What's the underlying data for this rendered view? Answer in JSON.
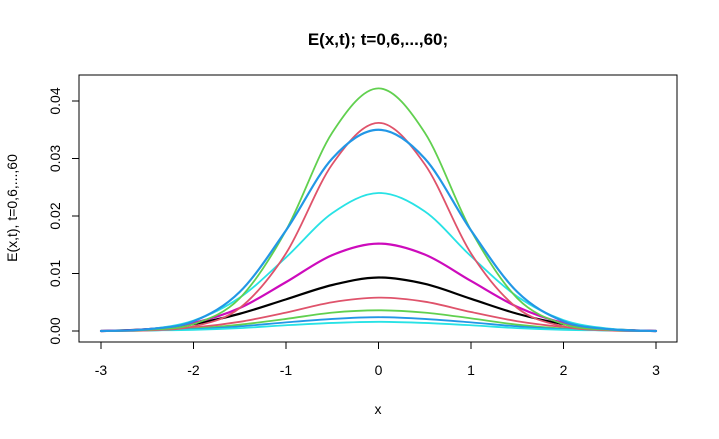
{
  "chart_data": {
    "type": "line",
    "title": "E(x,t); t=0,6,...,60;",
    "xlabel": "x",
    "ylabel": "E(x,t), t=0,6,...,60",
    "xlim": [
      -3,
      3
    ],
    "ylim": [
      0,
      0.04
    ],
    "xticks": [
      -3,
      -2,
      -1,
      0,
      1,
      2,
      3
    ],
    "yticks": [
      0.0,
      0.01,
      0.02,
      0.03,
      0.04
    ],
    "ytick_labels": [
      "0.00",
      "0.01",
      "0.02",
      "0.03",
      "0.04"
    ],
    "grid": false,
    "legend": "none",
    "x": [
      -3.0,
      -2.5,
      -2.0,
      -1.5,
      -1.0,
      -0.5,
      0.0,
      0.5,
      1.0,
      1.5,
      2.0,
      2.5,
      3.0
    ],
    "series": [
      {
        "color": "#000000",
        "width": 2.2,
        "values": [
          0.0,
          0.0003,
          0.0012,
          0.003,
          0.0055,
          0.008,
          0.0093,
          0.0082,
          0.0056,
          0.003,
          0.0012,
          0.0003,
          0.0
        ]
      },
      {
        "color": "#DF536B",
        "width": 1.8,
        "values": [
          0.0,
          0.0002,
          0.0006,
          0.0016,
          0.0032,
          0.005,
          0.0058,
          0.0051,
          0.0033,
          0.0017,
          0.0007,
          0.0002,
          0.0
        ]
      },
      {
        "color": "#61D04F",
        "width": 1.8,
        "values": [
          0.0,
          0.0001,
          0.0004,
          0.0011,
          0.0021,
          0.0032,
          0.0036,
          0.0032,
          0.0022,
          0.0011,
          0.0004,
          0.0001,
          0.0
        ]
      },
      {
        "color": "#2297E6",
        "width": 1.8,
        "values": [
          0.0,
          0.0001,
          0.0003,
          0.0008,
          0.0015,
          0.0021,
          0.0024,
          0.0021,
          0.0015,
          0.0008,
          0.0003,
          0.0001,
          0.0
        ]
      },
      {
        "color": "#28E2E5",
        "width": 1.8,
        "values": [
          0.0,
          0.0001,
          0.0002,
          0.0005,
          0.001,
          0.0014,
          0.0016,
          0.0014,
          0.001,
          0.0005,
          0.0002,
          0.0001,
          0.0
        ]
      },
      {
        "color": "#CD0BBC",
        "width": 2.2,
        "values": [
          0.0,
          0.0003,
          0.0014,
          0.004,
          0.0085,
          0.0132,
          0.0152,
          0.0133,
          0.0087,
          0.0042,
          0.0014,
          0.0003,
          0.0
        ]
      },
      {
        "color": "#28E2E5",
        "width": 1.8,
        "values": [
          0.0,
          0.0003,
          0.0018,
          0.0058,
          0.0128,
          0.0205,
          0.024,
          0.0208,
          0.013,
          0.006,
          0.0019,
          0.0004,
          0.0
        ]
      },
      {
        "color": "#DF536B",
        "width": 1.8,
        "values": [
          0.0,
          0.0001,
          0.0008,
          0.004,
          0.0135,
          0.029,
          0.0362,
          0.029,
          0.0135,
          0.004,
          0.0008,
          0.0001,
          0.0
        ]
      },
      {
        "color": "#61D04F",
        "width": 1.8,
        "values": [
          0.0,
          0.0002,
          0.0012,
          0.0057,
          0.0175,
          0.0345,
          0.0422,
          0.0345,
          0.0175,
          0.0057,
          0.0012,
          0.0002,
          0.0
        ]
      },
      {
        "color": "#2297E6",
        "width": 2.2,
        "values": [
          0.0,
          0.0003,
          0.0017,
          0.0068,
          0.0175,
          0.03,
          0.035,
          0.03,
          0.0175,
          0.0068,
          0.0017,
          0.0003,
          0.0
        ]
      }
    ]
  }
}
